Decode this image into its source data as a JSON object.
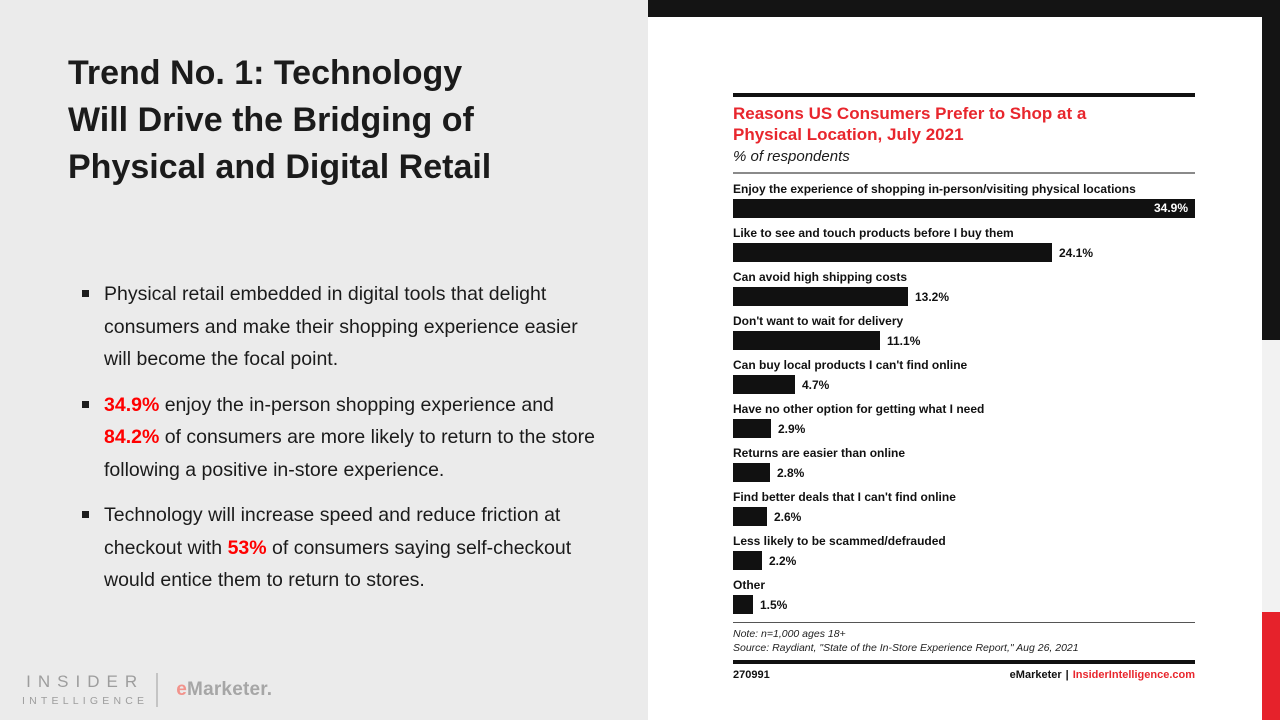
{
  "slide": {
    "title": "Trend No. 1: Technology Will Drive the Bridging of Physical and Digital Retail",
    "title_lines": [
      "Trend No. 1: Technology",
      "Will Drive the Bridging of",
      "Physical and Digital Retail"
    ],
    "bullets": [
      {
        "runs": [
          {
            "text": "Physical retail embedded in digital tools that delight consumers and make their shopping experience easier will become the focal point.",
            "red": false
          }
        ]
      },
      {
        "runs": [
          {
            "text": "34.9%",
            "red": true
          },
          {
            "text": " enjoy the in-person shopping experience and ",
            "red": false
          },
          {
            "text": "84.2%",
            "red": true
          },
          {
            "text": " of consumers are more likely to return to the store following a positive in-store experience.",
            "red": false
          }
        ]
      },
      {
        "runs": [
          {
            "text": "Technology will increase speed and reduce friction at checkout with ",
            "red": false
          },
          {
            "text": "53%",
            "red": true
          },
          {
            "text": " of consumers saying self-checkout would entice them to return to stores.",
            "red": false
          }
        ]
      }
    ],
    "logos": {
      "insider_line1": "INSIDER",
      "insider_line2": "INTELLIGENCE",
      "emarketer_e": "e",
      "emarketer_rest": "Marketer."
    }
  },
  "chart_data": {
    "type": "bar",
    "orientation": "horizontal",
    "title": "Reasons US Consumers Prefer to Shop at a Physical Location, July 2021",
    "title_lines": [
      "Reasons US Consumers Prefer to Shop at a",
      "Physical Location, July 2021"
    ],
    "subtitle": "% of respondents",
    "categories": [
      "Enjoy the experience of shopping in-person/visiting physical locations",
      "Like to see and touch products before I buy them",
      "Can avoid high shipping costs",
      "Don't want to wait for delivery",
      "Can buy local products I can't find online",
      "Have no other option for getting what I need",
      "Returns are easier than online",
      "Find better deals that I can't find online",
      "Less likely to be scammed/defrauded",
      "Other"
    ],
    "values": [
      34.9,
      24.1,
      13.2,
      11.1,
      4.7,
      2.9,
      2.8,
      2.6,
      2.2,
      1.5
    ],
    "value_labels": [
      "34.9%",
      "24.1%",
      "13.2%",
      "11.1%",
      "4.7%",
      "2.9%",
      "2.8%",
      "2.6%",
      "2.2%",
      "1.5%"
    ],
    "xlim": [
      0,
      34.9
    ],
    "inside_value_index": 0,
    "grid": false,
    "legend": "none",
    "bar_color": "#111111",
    "note": "Note: n=1,000 ages 18+",
    "source": "Source: Raydiant, \"State of the In-Store Experience Report,\" Aug 26, 2021",
    "chart_id": "270991",
    "footer_brand": "eMarketer",
    "footer_separator": "|",
    "footer_site": "InsiderIntelligence.com"
  },
  "colors": {
    "slide_background": "#ebebeb",
    "chart_title_red": "#e8262d",
    "bullet_stat_red": "#ff0000",
    "bar_black": "#111111",
    "edge_strip_black": "#141414",
    "edge_strip_gray": "#f2f2f2",
    "edge_strip_red": "#e6222b"
  }
}
